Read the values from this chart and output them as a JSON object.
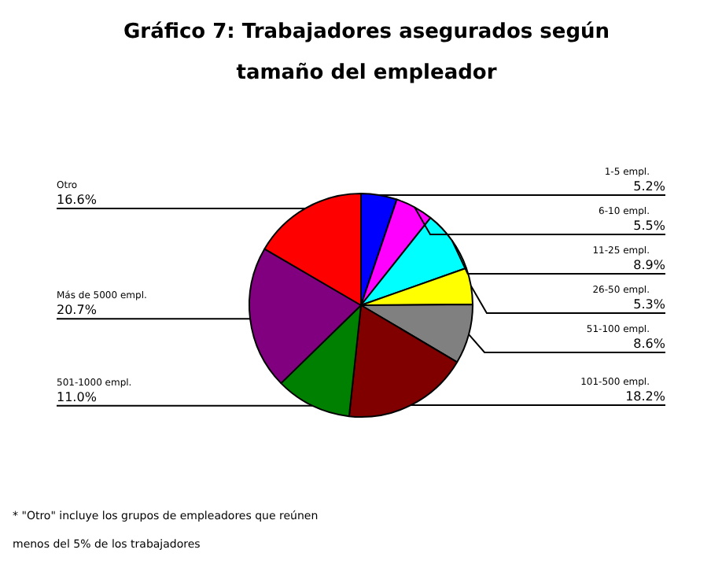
{
  "chart_data": {
    "type": "pie",
    "title": "Gráfico 7: Trabajadores asegurados según tamaño del empleador",
    "categories": [
      "1-5 empl.",
      "6-10 empl.",
      "11-25 empl.",
      "26-50 empl.",
      "51-100 empl.",
      "101-500 empl.",
      "501-1000 empl.",
      "Más de 5000 empl.",
      "Otro"
    ],
    "values": [
      5.2,
      5.5,
      8.9,
      5.3,
      8.6,
      18.2,
      11.0,
      20.7,
      16.6
    ],
    "value_labels": [
      "5.2%",
      "5.5%",
      "8.9%",
      "5.3%",
      "8.6%",
      "18.2%",
      "11.0%",
      "20.7%",
      "16.6%"
    ],
    "colors": [
      "#0000ff",
      "#ff00ff",
      "#00ffff",
      "#ffff00",
      "#808080",
      "#800000",
      "#008000",
      "#800080",
      "#ff0000"
    ],
    "annotations": [
      "* \"Otro\" incluye los grupos de empleadores que reúnen",
      "menos del 5% de los trabajadores"
    ],
    "legend": false
  }
}
